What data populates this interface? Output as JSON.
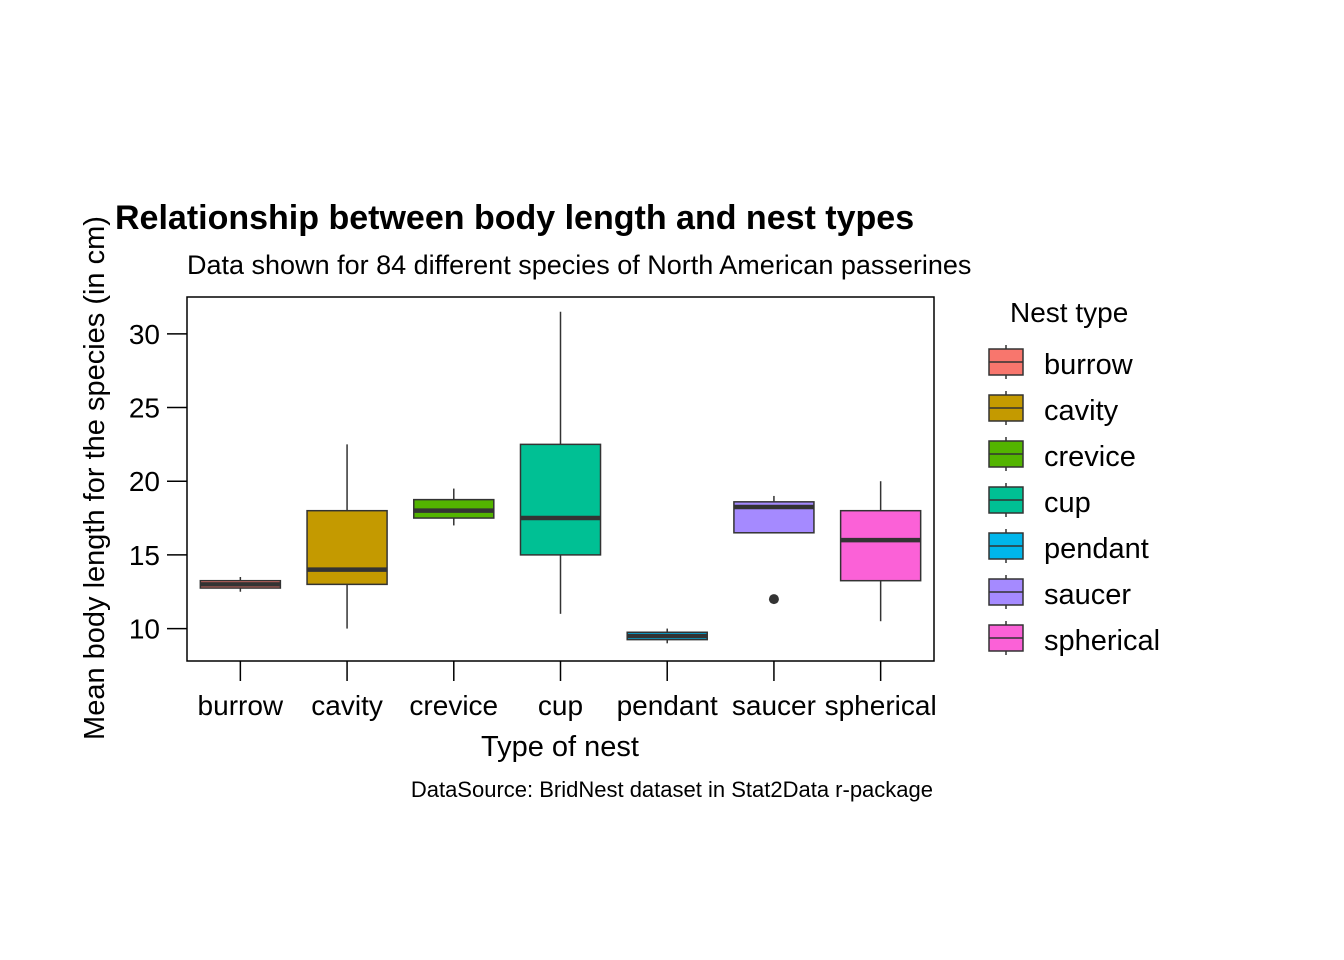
{
  "chart_data": {
    "type": "boxplot",
    "title": "Relationship between body length and nest types",
    "subtitle": "Data shown for 84 different species of North American passerines",
    "xlabel": "Type of nest",
    "ylabel": "Mean body length for the species (in cm)",
    "caption": "DataSource: BridNest dataset in Stat2Data r-package",
    "legend_title": "Nest type",
    "legend_position": "right",
    "ylim": [
      7.8,
      32.5
    ],
    "yticks": [
      10,
      15,
      20,
      25,
      30
    ],
    "ytick_labels": [
      "10",
      "15",
      "20",
      "25",
      "30"
    ],
    "grid": false,
    "categories": [
      "burrow",
      "cavity",
      "crevice",
      "cup",
      "pendant",
      "saucer",
      "spherical"
    ],
    "boxes": [
      {
        "name": "burrow",
        "color": "#F8766D",
        "whisker_low": 12.5,
        "q1": 12.75,
        "median": 13.0,
        "q3": 13.25,
        "whisker_high": 13.5,
        "outliers": []
      },
      {
        "name": "cavity",
        "color": "#C49A00",
        "whisker_low": 10.0,
        "q1": 13.0,
        "median": 14.0,
        "q3": 18.0,
        "whisker_high": 22.5,
        "outliers": []
      },
      {
        "name": "crevice",
        "color": "#53B400",
        "whisker_low": 17.0,
        "q1": 17.5,
        "median": 18.0,
        "q3": 18.75,
        "whisker_high": 19.5,
        "outliers": []
      },
      {
        "name": "cup",
        "color": "#00C094",
        "whisker_low": 11.0,
        "q1": 15.0,
        "median": 17.5,
        "q3": 22.5,
        "whisker_high": 31.5,
        "outliers": []
      },
      {
        "name": "pendant",
        "color": "#00B6EB",
        "whisker_low": 9.0,
        "q1": 9.25,
        "median": 9.5,
        "q3": 9.75,
        "whisker_high": 10.0,
        "outliers": []
      },
      {
        "name": "saucer",
        "color": "#A58AFF",
        "whisker_low": 16.5,
        "q1": 16.5,
        "median": 18.25,
        "q3": 18.6,
        "whisker_high": 19.0,
        "outliers": [
          12.0
        ]
      },
      {
        "name": "spherical",
        "color": "#FB61D7",
        "whisker_low": 10.5,
        "q1": 13.25,
        "median": 16.0,
        "q3": 18.0,
        "whisker_high": 20.0,
        "outliers": []
      }
    ]
  }
}
